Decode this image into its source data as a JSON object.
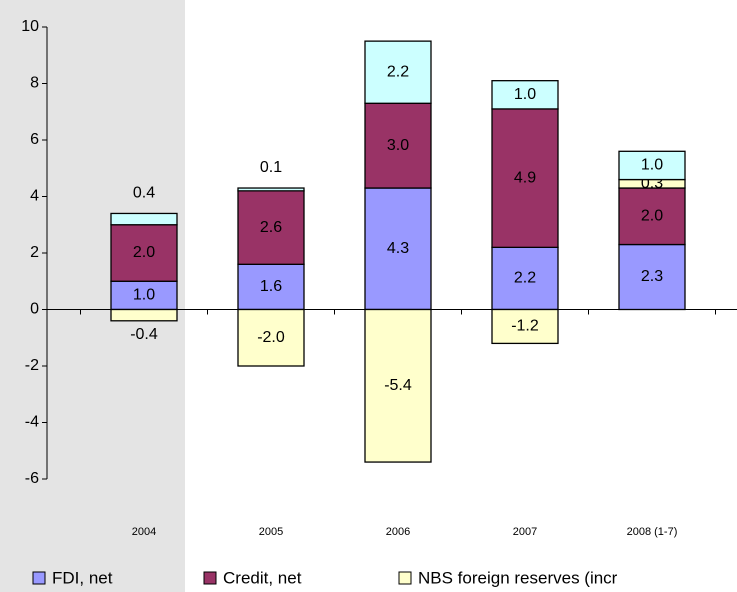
{
  "chart_data": {
    "type": "stacked_bar",
    "categories": [
      "2004",
      "2005",
      "2006",
      "2007",
      "2008   (1-7)"
    ],
    "series": [
      {
        "name": "FDI, net",
        "color": "#9999ff",
        "values": [
          1.0,
          1.6,
          4.3,
          2.2,
          2.3
        ],
        "value_labels": [
          "1.0",
          "1.6",
          "4.3",
          "2.2",
          "2.3"
        ]
      },
      {
        "name": "Credit, net",
        "color": "#993366",
        "values": [
          2.0,
          2.6,
          3.0,
          4.9,
          2.0
        ],
        "value_labels": [
          "2.0",
          "2.6",
          "3.0",
          "4.9",
          "2.0"
        ]
      },
      {
        "name": "NBS foreign reserves (incr",
        "color": "#ffffcc",
        "values": [
          -0.4,
          -2.0,
          -5.4,
          -1.2,
          0.3
        ],
        "value_labels": [
          "-0.4",
          "-2.0",
          "-5.4",
          "-1.2",
          "0.3"
        ]
      },
      {
        "color": "#ccffff",
        "values": [
          0.4,
          0.1,
          2.2,
          1.0,
          1.0
        ],
        "value_labels": [
          "0.4",
          "0.1",
          "2.2",
          "1.0",
          "1.0"
        ]
      }
    ],
    "ylim": [
      -6,
      10
    ],
    "yticks": [
      -6,
      -4,
      -2,
      0,
      2,
      4,
      6,
      8,
      10
    ],
    "legend": "bottom"
  }
}
